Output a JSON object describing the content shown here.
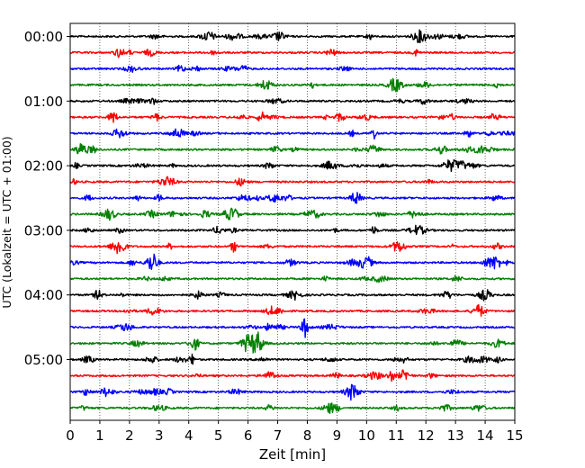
{
  "chart_data": {
    "type": "line",
    "title": "",
    "xlabel": "Zeit  [min]",
    "ylabel": "UTC (Lokalzeit = UTC + 01:00)",
    "xlim": [
      0,
      15
    ],
    "x_ticks": [
      0,
      1,
      2,
      3,
      4,
      5,
      6,
      7,
      8,
      9,
      10,
      11,
      12,
      13,
      14,
      15
    ],
    "y_tick_labels": [
      "00:00",
      "01:00",
      "02:00",
      "03:00",
      "04:00",
      "05:00"
    ],
    "traces_per_hour": 4,
    "trace_count": 24,
    "trace_colors": [
      "#000000",
      "#ff0000",
      "#0000ff",
      "#008000"
    ],
    "grid": "vertical dotted lines at each minute",
    "series": [
      {
        "start": "00:00",
        "color": "black"
      },
      {
        "start": "00:15",
        "color": "red"
      },
      {
        "start": "00:30",
        "color": "blue"
      },
      {
        "start": "00:45",
        "color": "green"
      },
      {
        "start": "01:00",
        "color": "black"
      },
      {
        "start": "01:15",
        "color": "red"
      },
      {
        "start": "01:30",
        "color": "blue"
      },
      {
        "start": "01:45",
        "color": "green"
      },
      {
        "start": "02:00",
        "color": "black"
      },
      {
        "start": "02:15",
        "color": "red"
      },
      {
        "start": "02:30",
        "color": "blue"
      },
      {
        "start": "02:45",
        "color": "green"
      },
      {
        "start": "03:00",
        "color": "black"
      },
      {
        "start": "03:15",
        "color": "red"
      },
      {
        "start": "03:30",
        "color": "blue"
      },
      {
        "start": "03:45",
        "color": "green"
      },
      {
        "start": "04:00",
        "color": "black"
      },
      {
        "start": "04:15",
        "color": "red"
      },
      {
        "start": "04:30",
        "color": "blue"
      },
      {
        "start": "04:45",
        "color": "green"
      },
      {
        "start": "05:00",
        "color": "black"
      },
      {
        "start": "05:15",
        "color": "red"
      },
      {
        "start": "05:30",
        "color": "blue"
      },
      {
        "start": "05:45",
        "color": "green"
      }
    ]
  }
}
